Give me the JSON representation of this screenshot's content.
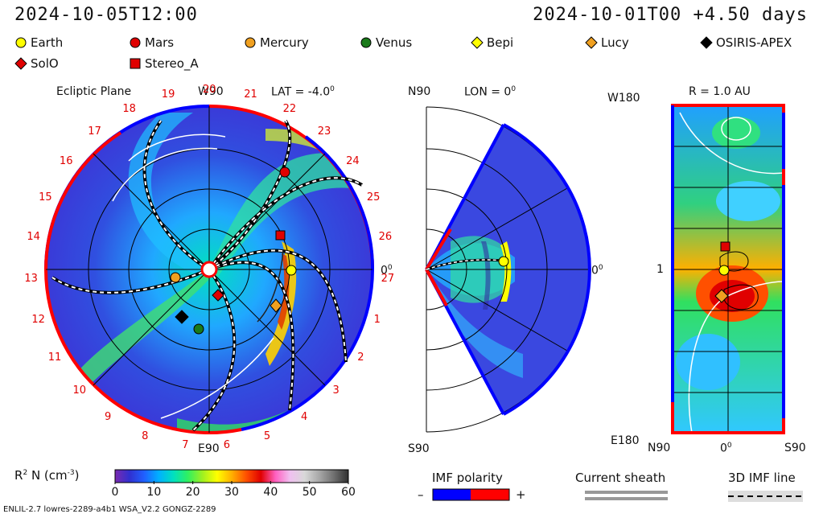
{
  "header": {
    "timestamp_left": "2024-10-05T12:00",
    "timestamp_right": "2024-10-01T00 +4.50 days"
  },
  "legend": [
    {
      "label": "Earth",
      "marker": "circle",
      "color": "#ffff00"
    },
    {
      "label": "Mars",
      "marker": "circle",
      "color": "#e00000"
    },
    {
      "label": "Mercury",
      "marker": "circle",
      "color": "#f0a020"
    },
    {
      "label": "Venus",
      "marker": "circle",
      "color": "#1a7a1a"
    },
    {
      "label": "Bepi",
      "marker": "diamond",
      "color": "#ffff00"
    },
    {
      "label": "Lucy",
      "marker": "diamond",
      "color": "#f0a020"
    },
    {
      "label": "OSIRIS-APEX",
      "marker": "diamond",
      "color": "#000000"
    },
    {
      "label": "SolO",
      "marker": "diamond",
      "color": "#e00000"
    },
    {
      "label": "Stereo_A",
      "marker": "square",
      "color": "#e00000"
    }
  ],
  "panels": {
    "ecliptic": {
      "title": "Ecliptic Plane",
      "lat": "LAT = -4.0",
      "lat_sup": "0",
      "top": "W90",
      "bottom": "E90",
      "right": "0",
      "right_sup": "0",
      "carrington_labels": [
        "20",
        "21",
        "22",
        "23",
        "24",
        "25",
        "26",
        "27",
        "1",
        "2",
        "3",
        "4",
        "5",
        "6",
        "7",
        "8",
        "9",
        "10",
        "11",
        "12",
        "13",
        "14",
        "15",
        "16",
        "17",
        "18",
        "19"
      ]
    },
    "meridional": {
      "lon": "LON = 0",
      "lon_sup": "0",
      "top": "N90",
      "bottom": "S90",
      "right": "0",
      "right_sup": "0"
    },
    "map": {
      "radius": "R = 1.0 AU",
      "top_left": "W180",
      "bottom_left": "E180",
      "left_tick": "1",
      "x_left": "N90",
      "x_center": "0",
      "x_center_sup": "0",
      "x_right": "S90"
    }
  },
  "colorbar": {
    "label": "R",
    "label_sup": "2",
    "label_rest": " N (cm",
    "label_exp": "-3",
    "label_end": ")",
    "ticks": [
      "0",
      "10",
      "20",
      "30",
      "40",
      "50",
      "60"
    ],
    "colors": [
      "#7a2ab0",
      "#3030d0",
      "#2060ff",
      "#00b0ff",
      "#00e0c0",
      "#30f060",
      "#a0f020",
      "#ffff00",
      "#ffb000",
      "#ff5000",
      "#e00000",
      "#ff60c0",
      "#f0c0f0",
      "#d8d8d8",
      "#a8a8a8",
      "#707070",
      "#303030"
    ]
  },
  "imf": {
    "label": "IMF polarity",
    "minus": "–",
    "plus": "+",
    "negative_color": "#0000ff",
    "positive_color": "#ff0000"
  },
  "current_sheath": {
    "label": "Current sheath"
  },
  "imf_line": {
    "label": "3D IMF line"
  },
  "footer": "ENLIL-2.7 lowres-2289-a4b1 WSA_V2.2 GONGZ-2289"
}
